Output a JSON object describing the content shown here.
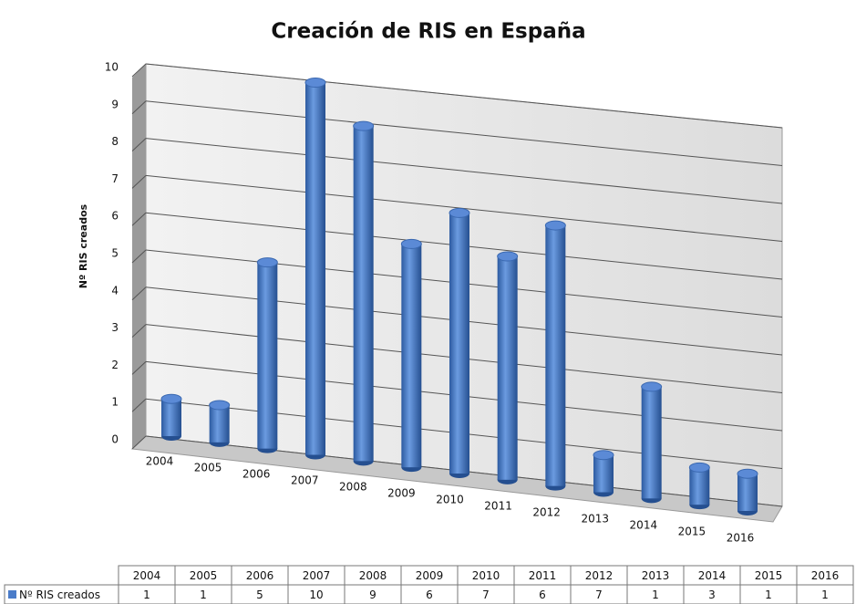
{
  "chart_data": {
    "type": "bar",
    "title": "Creación de RIS en España",
    "y_label": "Nº RIS creados",
    "categories": [
      "2004",
      "2005",
      "2006",
      "2007",
      "2008",
      "2009",
      "2010",
      "2011",
      "2012",
      "2013",
      "2014",
      "2015",
      "2016"
    ],
    "series": [
      {
        "name": "Nº RIS creados",
        "color": "#4a7cc9",
        "values": [
          1,
          1,
          5,
          10,
          9,
          6,
          7,
          6,
          7,
          1,
          3,
          1,
          1
        ]
      }
    ],
    "ylim": [
      0,
      10
    ],
    "yticks": [
      0,
      1,
      2,
      3,
      4,
      5,
      6,
      7,
      8,
      9,
      10
    ],
    "grid": true
  }
}
